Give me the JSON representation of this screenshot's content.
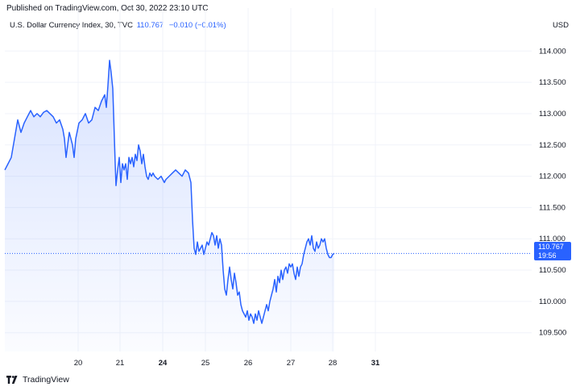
{
  "header": {
    "published": "Published on TradingView.com, Oct 30, 2022 23:10 UTC",
    "symbol": "U.S. Dollar Currency Index, 30, TVC",
    "price": "110.767",
    "change": "−0.010 (−0.01%)",
    "currency": "USD"
  },
  "price_tag": {
    "value": "110.767",
    "countdown": "19:56"
  },
  "footer": {
    "brand": "TradingView"
  },
  "colors": {
    "line": "#2962ff",
    "tag": "#2962ff",
    "grid": "#f0f3fa",
    "text": "#131722"
  },
  "chart_data": {
    "type": "area",
    "title": "",
    "xlabel": "",
    "ylabel": "",
    "ylim": [
      109.2,
      114.3
    ],
    "xlim": [
      0,
      654
    ],
    "grid": true,
    "last_value": 110.767,
    "x_ticks": [
      {
        "label": "20",
        "x": 91,
        "bold": false
      },
      {
        "label": "21",
        "x": 143,
        "bold": false
      },
      {
        "label": "24",
        "x": 196,
        "bold": true
      },
      {
        "label": "25",
        "x": 249,
        "bold": false
      },
      {
        "label": "26",
        "x": 302,
        "bold": false
      },
      {
        "label": "27",
        "x": 355,
        "bold": false
      },
      {
        "label": "28",
        "x": 407,
        "bold": false
      },
      {
        "label": "31",
        "x": 460,
        "bold": true
      }
    ],
    "y_ticks": [
      "114.000",
      "113.500",
      "113.000",
      "112.500",
      "112.000",
      "111.500",
      "111.000",
      "110.500",
      "110.000",
      "109.500"
    ],
    "series": [
      {
        "values": [
          [
            0,
            112.1
          ],
          [
            4,
            112.2
          ],
          [
            8,
            112.3
          ],
          [
            12,
            112.6
          ],
          [
            16,
            112.9
          ],
          [
            20,
            112.7
          ],
          [
            24,
            112.85
          ],
          [
            28,
            112.95
          ],
          [
            32,
            113.05
          ],
          [
            36,
            112.95
          ],
          [
            40,
            113.0
          ],
          [
            44,
            112.95
          ],
          [
            48,
            113.02
          ],
          [
            52,
            113.05
          ],
          [
            56,
            113.0
          ],
          [
            60,
            112.95
          ],
          [
            64,
            112.85
          ],
          [
            68,
            112.9
          ],
          [
            72,
            112.75
          ],
          [
            74,
            112.6
          ],
          [
            76,
            112.3
          ],
          [
            80,
            112.7
          ],
          [
            84,
            112.5
          ],
          [
            86,
            112.3
          ],
          [
            88,
            112.6
          ],
          [
            92,
            112.85
          ],
          [
            96,
            112.9
          ],
          [
            100,
            113.0
          ],
          [
            104,
            112.85
          ],
          [
            108,
            112.9
          ],
          [
            112,
            113.1
          ],
          [
            116,
            113.05
          ],
          [
            120,
            113.2
          ],
          [
            124,
            113.3
          ],
          [
            126,
            113.1
          ],
          [
            128,
            113.45
          ],
          [
            130,
            113.85
          ],
          [
            132,
            113.65
          ],
          [
            134,
            113.4
          ],
          [
            135,
            113.0
          ],
          [
            137,
            112.2
          ],
          [
            138,
            111.85
          ],
          [
            140,
            112.1
          ],
          [
            142,
            112.3
          ],
          [
            144,
            111.9
          ],
          [
            146,
            112.2
          ],
          [
            148,
            112.1
          ],
          [
            150,
            112.2
          ],
          [
            152,
            111.95
          ],
          [
            154,
            112.3
          ],
          [
            156,
            112.2
          ],
          [
            158,
            112.3
          ],
          [
            160,
            112.15
          ],
          [
            162,
            112.35
          ],
          [
            164,
            112.25
          ],
          [
            166,
            112.5
          ],
          [
            168,
            112.4
          ],
          [
            170,
            112.2
          ],
          [
            172,
            112.35
          ],
          [
            174,
            112.15
          ],
          [
            176,
            112.0
          ],
          [
            178,
            111.95
          ],
          [
            180,
            112.05
          ],
          [
            182,
            112.0
          ],
          [
            184,
            112.05
          ],
          [
            186,
            112.0
          ],
          [
            190,
            111.95
          ],
          [
            194,
            112.0
          ],
          [
            196,
            111.95
          ],
          [
            198,
            111.9
          ],
          [
            200,
            111.95
          ],
          [
            204,
            112.0
          ],
          [
            208,
            112.05
          ],
          [
            212,
            112.1
          ],
          [
            216,
            112.05
          ],
          [
            220,
            112.0
          ],
          [
            224,
            112.1
          ],
          [
            228,
            112.05
          ],
          [
            231,
            111.9
          ],
          [
            233,
            111.3
          ],
          [
            235,
            110.85
          ],
          [
            237,
            110.75
          ],
          [
            239,
            110.95
          ],
          [
            241,
            110.8
          ],
          [
            243,
            110.85
          ],
          [
            245,
            110.9
          ],
          [
            247,
            110.75
          ],
          [
            249,
            110.85
          ],
          [
            251,
            110.95
          ],
          [
            253,
            110.9
          ],
          [
            255,
            111.0
          ],
          [
            257,
            111.1
          ],
          [
            259,
            111.05
          ],
          [
            261,
            110.9
          ],
          [
            263,
            111.05
          ],
          [
            265,
            110.85
          ],
          [
            267,
            111.0
          ],
          [
            269,
            110.9
          ],
          [
            271,
            110.5
          ],
          [
            273,
            110.2
          ],
          [
            275,
            110.1
          ],
          [
            277,
            110.35
          ],
          [
            279,
            110.55
          ],
          [
            281,
            110.35
          ],
          [
            283,
            110.2
          ],
          [
            285,
            110.45
          ],
          [
            287,
            110.3
          ],
          [
            289,
            110.1
          ],
          [
            291,
            110.15
          ],
          [
            293,
            109.95
          ],
          [
            295,
            109.85
          ],
          [
            297,
            109.8
          ],
          [
            299,
            109.75
          ],
          [
            301,
            109.85
          ],
          [
            303,
            109.7
          ],
          [
            305,
            109.8
          ],
          [
            307,
            109.75
          ],
          [
            309,
            109.65
          ],
          [
            311,
            109.8
          ],
          [
            313,
            109.7
          ],
          [
            315,
            109.85
          ],
          [
            317,
            109.75
          ],
          [
            319,
            109.65
          ],
          [
            321,
            109.75
          ],
          [
            323,
            109.85
          ],
          [
            325,
            109.95
          ],
          [
            327,
            109.85
          ],
          [
            329,
            110.0
          ],
          [
            331,
            110.1
          ],
          [
            333,
            110.2
          ],
          [
            335,
            110.35
          ],
          [
            337,
            110.15
          ],
          [
            339,
            110.4
          ],
          [
            341,
            110.3
          ],
          [
            343,
            110.5
          ],
          [
            345,
            110.35
          ],
          [
            347,
            110.5
          ],
          [
            349,
            110.55
          ],
          [
            351,
            110.45
          ],
          [
            353,
            110.6
          ],
          [
            355,
            110.55
          ],
          [
            357,
            110.6
          ],
          [
            359,
            110.45
          ],
          [
            361,
            110.35
          ],
          [
            363,
            110.55
          ],
          [
            365,
            110.4
          ],
          [
            367,
            110.55
          ],
          [
            369,
            110.6
          ],
          [
            371,
            110.75
          ],
          [
            373,
            110.85
          ],
          [
            375,
            110.95
          ],
          [
            377,
            111.0
          ],
          [
            379,
            110.9
          ],
          [
            381,
            111.05
          ],
          [
            383,
            110.85
          ],
          [
            385,
            110.8
          ],
          [
            387,
            110.95
          ],
          [
            389,
            110.85
          ],
          [
            391,
            110.9
          ],
          [
            393,
            111.0
          ],
          [
            395,
            110.95
          ],
          [
            397,
            111.0
          ],
          [
            399,
            110.85
          ],
          [
            401,
            110.75
          ],
          [
            403,
            110.7
          ],
          [
            405,
            110.7
          ],
          [
            407,
            110.75
          ],
          [
            409,
            110.767
          ]
        ]
      }
    ]
  }
}
